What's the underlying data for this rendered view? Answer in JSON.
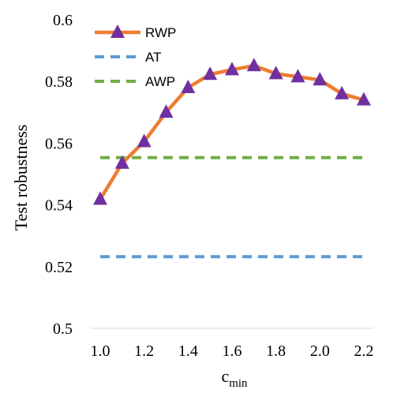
{
  "chart_data": {
    "type": "line",
    "ylabel": "Test robustness",
    "xlabel_main": "c",
    "xlabel_sub": "min",
    "x_ticks": [
      "1.0",
      "1.2",
      "1.4",
      "1.6",
      "1.8",
      "2.0",
      "2.2"
    ],
    "y_ticks": [
      "0.5",
      "0.52",
      "0.54",
      "0.56",
      "0.58",
      "0.6"
    ],
    "xlim": [
      1.0,
      2.2
    ],
    "ylim": [
      0.5,
      0.6
    ],
    "grid": false,
    "legend_position": "top-left",
    "series": [
      {
        "name": "RWP",
        "color": "#ED7D31",
        "marker_color": "#7030A0",
        "marker": "triangle",
        "x": [
          1.0,
          1.1,
          1.2,
          1.3,
          1.4,
          1.5,
          1.6,
          1.7,
          1.8,
          1.9,
          2.0,
          2.1,
          2.2
        ],
        "y": [
          0.5418,
          0.5535,
          0.5605,
          0.57,
          0.578,
          0.5823,
          0.5838,
          0.5851,
          0.5825,
          0.5815,
          0.5805,
          0.576,
          0.574
        ]
      },
      {
        "name": "AT",
        "color": "#5B9BD5",
        "style": "dashed",
        "x": [
          1.0,
          2.2
        ],
        "y": [
          0.5232,
          0.5232
        ]
      },
      {
        "name": "AWP",
        "color": "#70AD47",
        "style": "dashed",
        "x": [
          1.0,
          2.2
        ],
        "y": [
          0.5553,
          0.5553
        ]
      }
    ]
  }
}
